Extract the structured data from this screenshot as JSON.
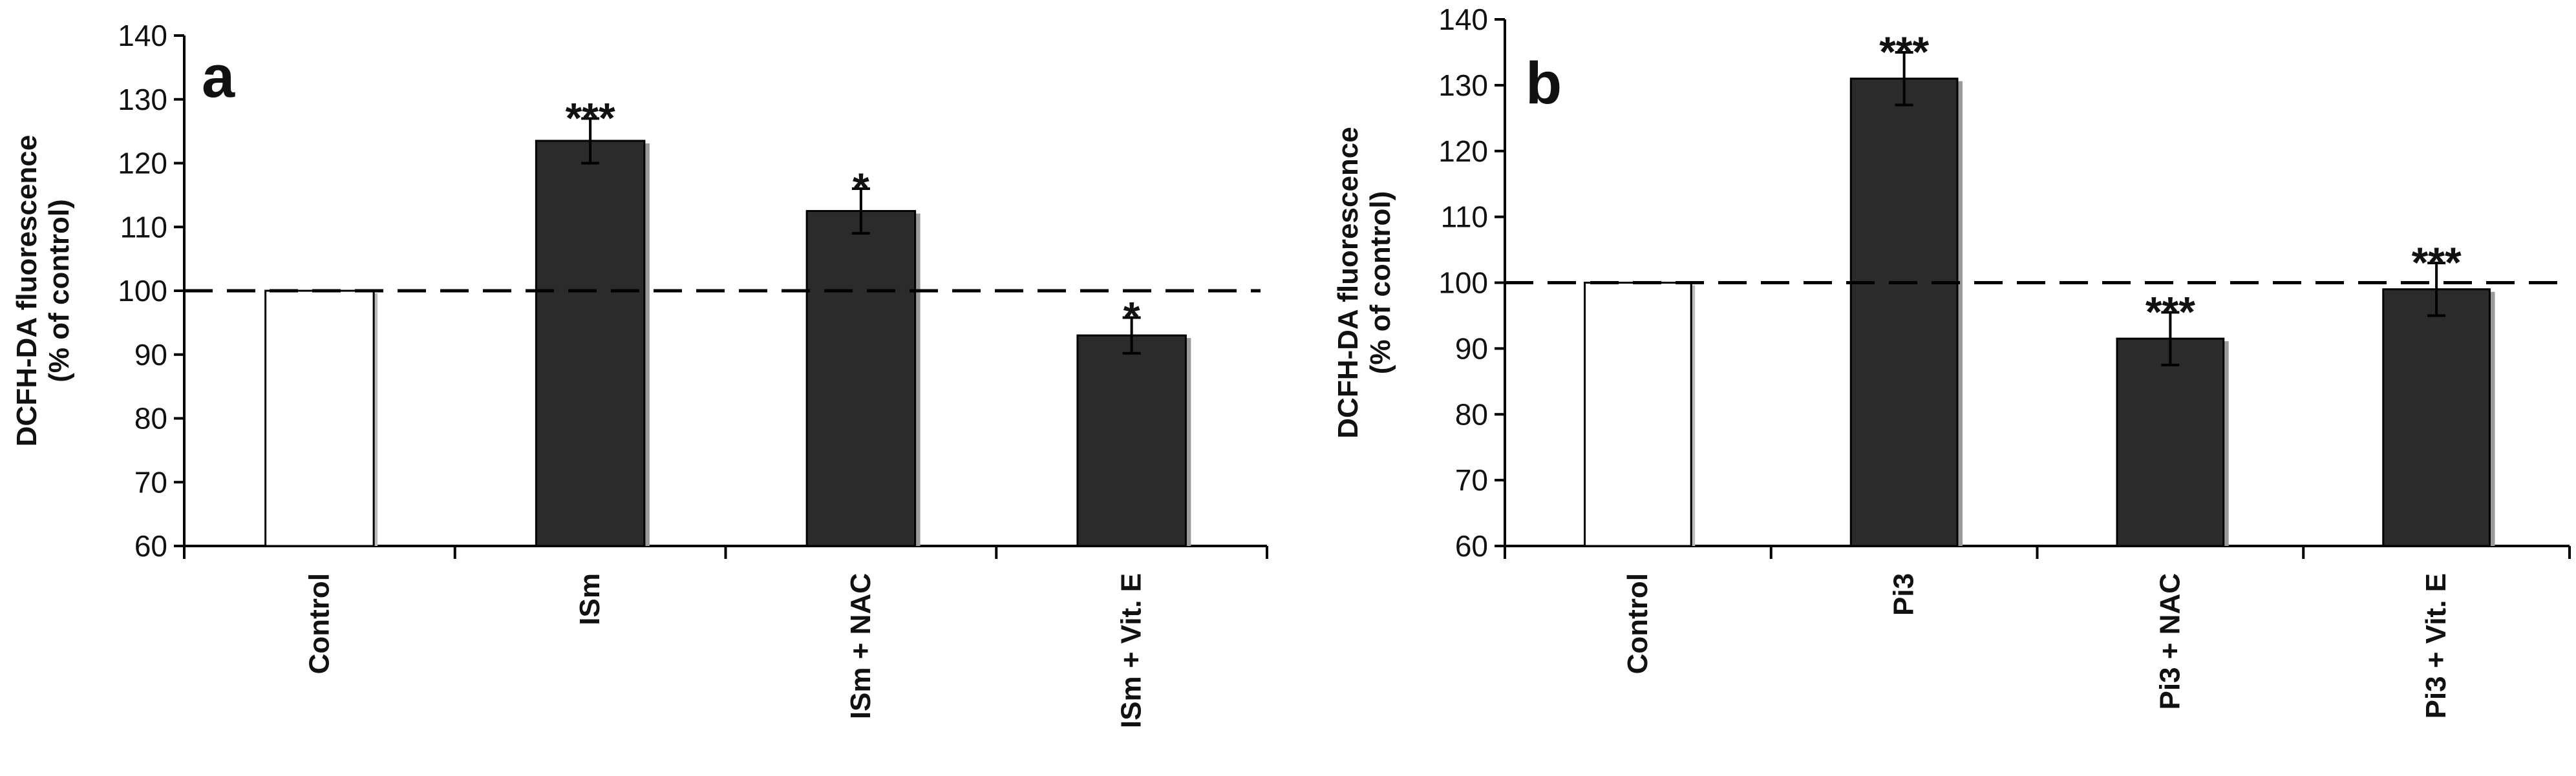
{
  "figure": {
    "colors": {
      "control_fill": "#ffffff",
      "treated_fill": "#2b2b2b",
      "axis": "#000000",
      "reference_line": "#000000"
    }
  },
  "chart_data": [
    {
      "type": "bar",
      "panel_label": "a",
      "ylabel_lines": [
        "DCFH-DA fluorescence",
        "(% of control)"
      ],
      "ylim": [
        60,
        140
      ],
      "yticks": [
        "60",
        "70",
        "80",
        "90",
        "100",
        "110",
        "120",
        "130",
        "140"
      ],
      "reference_line": 100,
      "categories": [
        "Control",
        "ISm",
        "ISm + NAC",
        "ISm + Vit. E"
      ],
      "values": [
        100,
        123.5,
        112.5,
        93
      ],
      "errors": [
        0,
        3.5,
        3.5,
        2.8
      ],
      "significance": [
        "",
        "***",
        "*",
        "*"
      ]
    },
    {
      "type": "bar",
      "panel_label": "b",
      "ylabel_lines": [
        "DCFH-DA fluorescence",
        "(% of control)"
      ],
      "ylim": [
        60,
        140
      ],
      "yticks": [
        "60",
        "70",
        "80",
        "90",
        "100",
        "110",
        "120",
        "130",
        "140"
      ],
      "reference_line": 100,
      "categories": [
        "Control",
        "Pi3",
        "Pi3 + NAC",
        "Pi3 + Vit. E"
      ],
      "values": [
        100,
        131,
        91.5,
        99
      ],
      "errors": [
        0,
        4,
        4,
        4
      ],
      "significance": [
        "",
        "***",
        "***",
        "***"
      ]
    }
  ]
}
